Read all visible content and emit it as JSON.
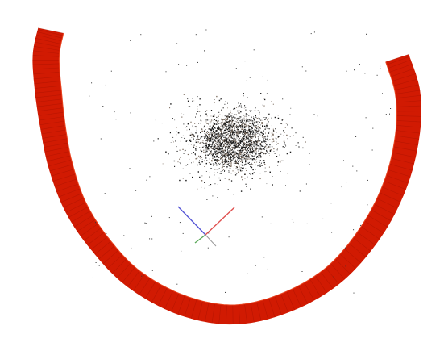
{
  "viewer": {
    "background_color": "#ffffff",
    "camera_trajectory": {
      "color": "#d11a02",
      "edge_color": "#a51200",
      "shape": "u-shaped-arc",
      "frame_count": 260
    },
    "point_cloud": {
      "dark_color": "#1a1a1a",
      "light_color": "#7a6a5c",
      "dense_count": 2600,
      "sparse_count": 140
    },
    "axes_gizmo": {
      "x_color": "#e0504f",
      "y_color": "#5ba85a",
      "z_color": "#5656d6"
    }
  }
}
